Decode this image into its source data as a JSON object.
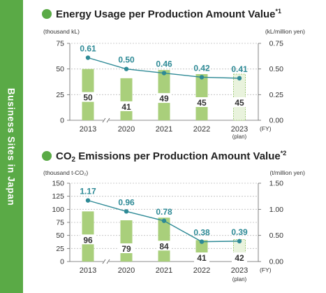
{
  "sidebar": {
    "label": "Business Sites in Japan"
  },
  "colors": {
    "accent": "#5aaa46",
    "bar": "#a9cf7b",
    "bar_plan_fill": "#e9f3dd",
    "bar_plan_border": "#8dbf5c",
    "line": "#2e8a96",
    "value_label": "#2e8a96"
  },
  "chart_data": [
    {
      "type": "bar",
      "title_parts": {
        "main": "Energy Usage per Production Amount Value",
        "sup": "*1"
      },
      "left_unit": "(thousand kL)",
      "right_unit": "(kL/million yen)",
      "fy_label": "(FY)",
      "categories": [
        "2013",
        "2020",
        "2021",
        "2022",
        "2023"
      ],
      "plan_note": "(plan)",
      "plan_index": 4,
      "left_axis": {
        "min": 0,
        "max": 75,
        "ticks": [
          "0",
          "25",
          "50",
          "75"
        ]
      },
      "right_axis": {
        "min": 0,
        "max": 0.75,
        "ticks": [
          "0.00",
          "0.25",
          "0.50",
          "0.75"
        ]
      },
      "series": [
        {
          "kind": "bar",
          "axis": "left",
          "values": [
            50,
            41,
            49,
            45,
            45
          ],
          "labels": [
            "50",
            "41",
            "49",
            "45",
            "45"
          ]
        },
        {
          "kind": "line",
          "axis": "right",
          "values": [
            0.61,
            0.5,
            0.46,
            0.42,
            0.41
          ],
          "labels": [
            "0.61",
            "0.50",
            "0.46",
            "0.42",
            "0.41"
          ]
        }
      ]
    },
    {
      "type": "bar",
      "title_parts": {
        "main_pre": "CO",
        "sub": "2",
        "main_post": " Emissions per Production Amount Value",
        "sup": "*2"
      },
      "left_unit": "(thousand t-CO₂)",
      "right_unit": "(t/million yen)",
      "fy_label": "(FY)",
      "categories": [
        "2013",
        "2020",
        "2021",
        "2022",
        "2023"
      ],
      "plan_note": "(plan)",
      "plan_index": 4,
      "left_axis": {
        "min": 0,
        "max": 150,
        "ticks": [
          "0",
          "25",
          "50",
          "75",
          "100",
          "125",
          "150"
        ]
      },
      "right_axis": {
        "min": 0,
        "max": 1.5,
        "ticks": [
          "0.00",
          "0.50",
          "1.00",
          "1.50"
        ]
      },
      "series": [
        {
          "kind": "bar",
          "axis": "left",
          "values": [
            96,
            79,
            84,
            41,
            42
          ],
          "labels": [
            "96",
            "79",
            "84",
            "41",
            "42"
          ]
        },
        {
          "kind": "line",
          "axis": "right",
          "values": [
            1.17,
            0.96,
            0.78,
            0.38,
            0.39
          ],
          "labels": [
            "1.17",
            "0.96",
            "0.78",
            "0.38",
            "0.39"
          ]
        }
      ]
    }
  ]
}
